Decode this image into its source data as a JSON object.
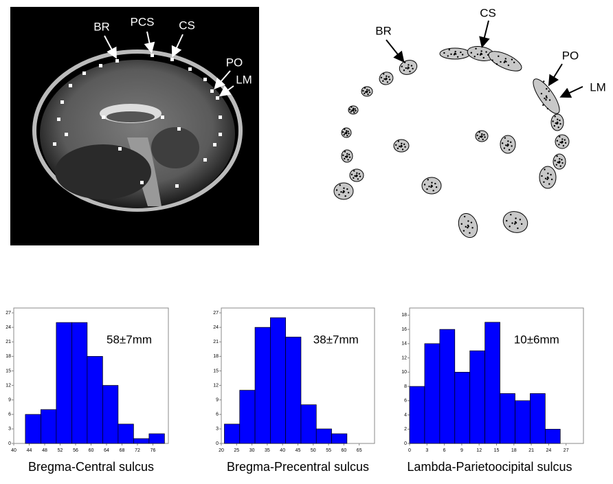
{
  "figure_labels": {
    "left": [
      "BR",
      "PCS",
      "CS",
      "PO",
      "LM"
    ],
    "right": [
      "BR",
      "CS",
      "PO",
      "LM"
    ]
  },
  "chart_data": [
    {
      "type": "histogram",
      "xlabel": "Bregma-Central sulcus",
      "annotation": "58±7mm",
      "color": "#0000ff",
      "bins": [
        43,
        47,
        51,
        55,
        59,
        63,
        67,
        71,
        75,
        79
      ],
      "values": [
        6,
        7,
        25,
        25,
        18,
        12,
        4,
        1,
        2
      ],
      "xlim": [
        40,
        80
      ],
      "xticks": [
        40,
        44,
        48,
        52,
        56,
        60,
        64,
        68,
        72,
        76
      ],
      "ylim": [
        0,
        28
      ],
      "yticks": [
        0,
        3,
        6,
        9,
        12,
        15,
        18,
        21,
        24,
        27
      ]
    },
    {
      "type": "histogram",
      "xlabel": "Bregma-Precentral sulcus",
      "annotation": "38±7mm",
      "color": "#0000ff",
      "bins": [
        21,
        26,
        31,
        36,
        41,
        46,
        51,
        56,
        61
      ],
      "values": [
        4,
        11,
        24,
        26,
        22,
        8,
        3,
        2
      ],
      "xlim": [
        20,
        70
      ],
      "xticks": [
        20,
        25,
        30,
        35,
        40,
        45,
        50,
        55,
        60,
        65
      ],
      "ylim": [
        0,
        28
      ],
      "yticks": [
        0,
        3,
        6,
        9,
        12,
        15,
        18,
        21,
        24,
        27
      ]
    },
    {
      "type": "histogram",
      "xlabel": "Lambda-Parietoocipital sulcus",
      "annotation": "10±6mm",
      "color": "#0000ff",
      "bins": [
        0,
        2.6,
        5.2,
        7.8,
        10.4,
        13,
        15.6,
        18.2,
        20.8,
        23.4,
        26
      ],
      "values": [
        8,
        14,
        16,
        10,
        13,
        17,
        7,
        6,
        7,
        2
      ],
      "xlim": [
        0,
        30
      ],
      "xticks": [
        0,
        3,
        6,
        9,
        12,
        15,
        18,
        21,
        24,
        27
      ],
      "ylim": [
        0,
        19
      ],
      "yticks": [
        0,
        2,
        4,
        6,
        8,
        10,
        12,
        14,
        16,
        18
      ]
    }
  ]
}
